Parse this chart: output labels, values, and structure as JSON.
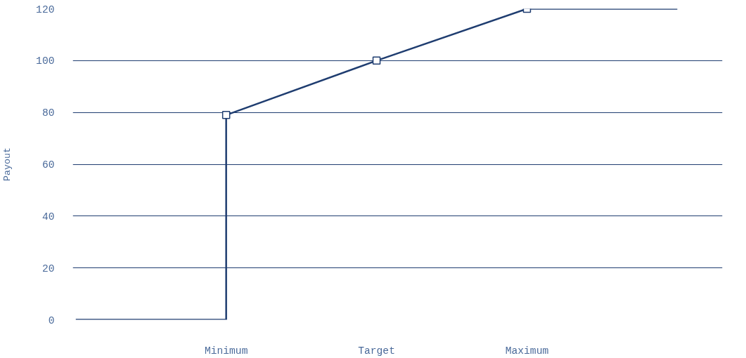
{
  "chart_data": {
    "type": "line",
    "ylabel": "Payout",
    "categories": [
      null,
      "Minimum",
      "Target",
      "Maximum",
      null
    ],
    "ylim": [
      0,
      120
    ],
    "yticks": [
      0,
      20,
      40,
      60,
      80,
      100,
      120
    ],
    "grid": "y",
    "series": [
      {
        "type": "step",
        "color": "#1f3d70",
        "values": [
          0,
          79,
          null,
          null,
          null
        ]
      },
      {
        "color": "#1f3d70",
        "marker": "none",
        "line_style": "solid",
        "values": [
          null,
          79,
          100,
          120,
          120
        ]
      },
      {
        "type": "scatter",
        "color": "#1f3d70",
        "marker": "square",
        "values": [
          null,
          79,
          100,
          120,
          null
        ]
      }
    ]
  }
}
